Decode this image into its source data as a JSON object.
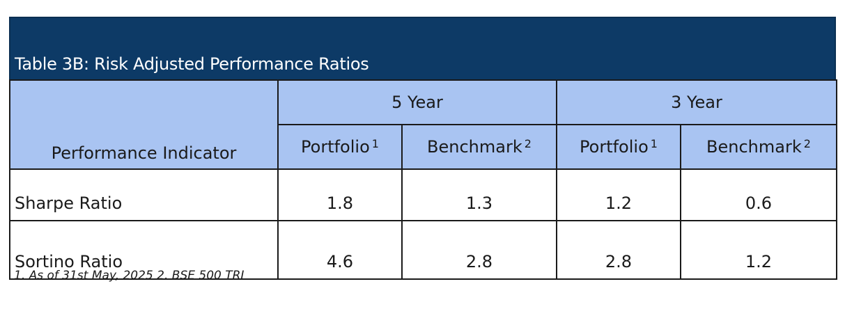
{
  "table": {
    "title": "Table 3B: Risk Adjusted Performance Ratios",
    "indicator_header": "Performance Indicator",
    "periods": [
      "5 Year",
      "3 Year"
    ],
    "sub_headers": [
      {
        "label": "Portfolio",
        "note": "1"
      },
      {
        "label": "Benchmark",
        "note": "2"
      },
      {
        "label": "Portfolio",
        "note": "1"
      },
      {
        "label": "Benchmark",
        "note": "2"
      }
    ],
    "rows": [
      {
        "indicator": "Sharpe Ratio",
        "values": [
          "1.8",
          "1.3",
          "1.2",
          "0.6"
        ]
      },
      {
        "indicator": "Sortino Ratio",
        "values": [
          "4.6",
          "2.8",
          "2.8",
          "1.2"
        ]
      }
    ],
    "colors": {
      "title_background": "#0d3a66",
      "header_background": "#a9c4f2"
    }
  },
  "footnote": "1. As of 31st May, 2025 2. BSE 500 TRI"
}
